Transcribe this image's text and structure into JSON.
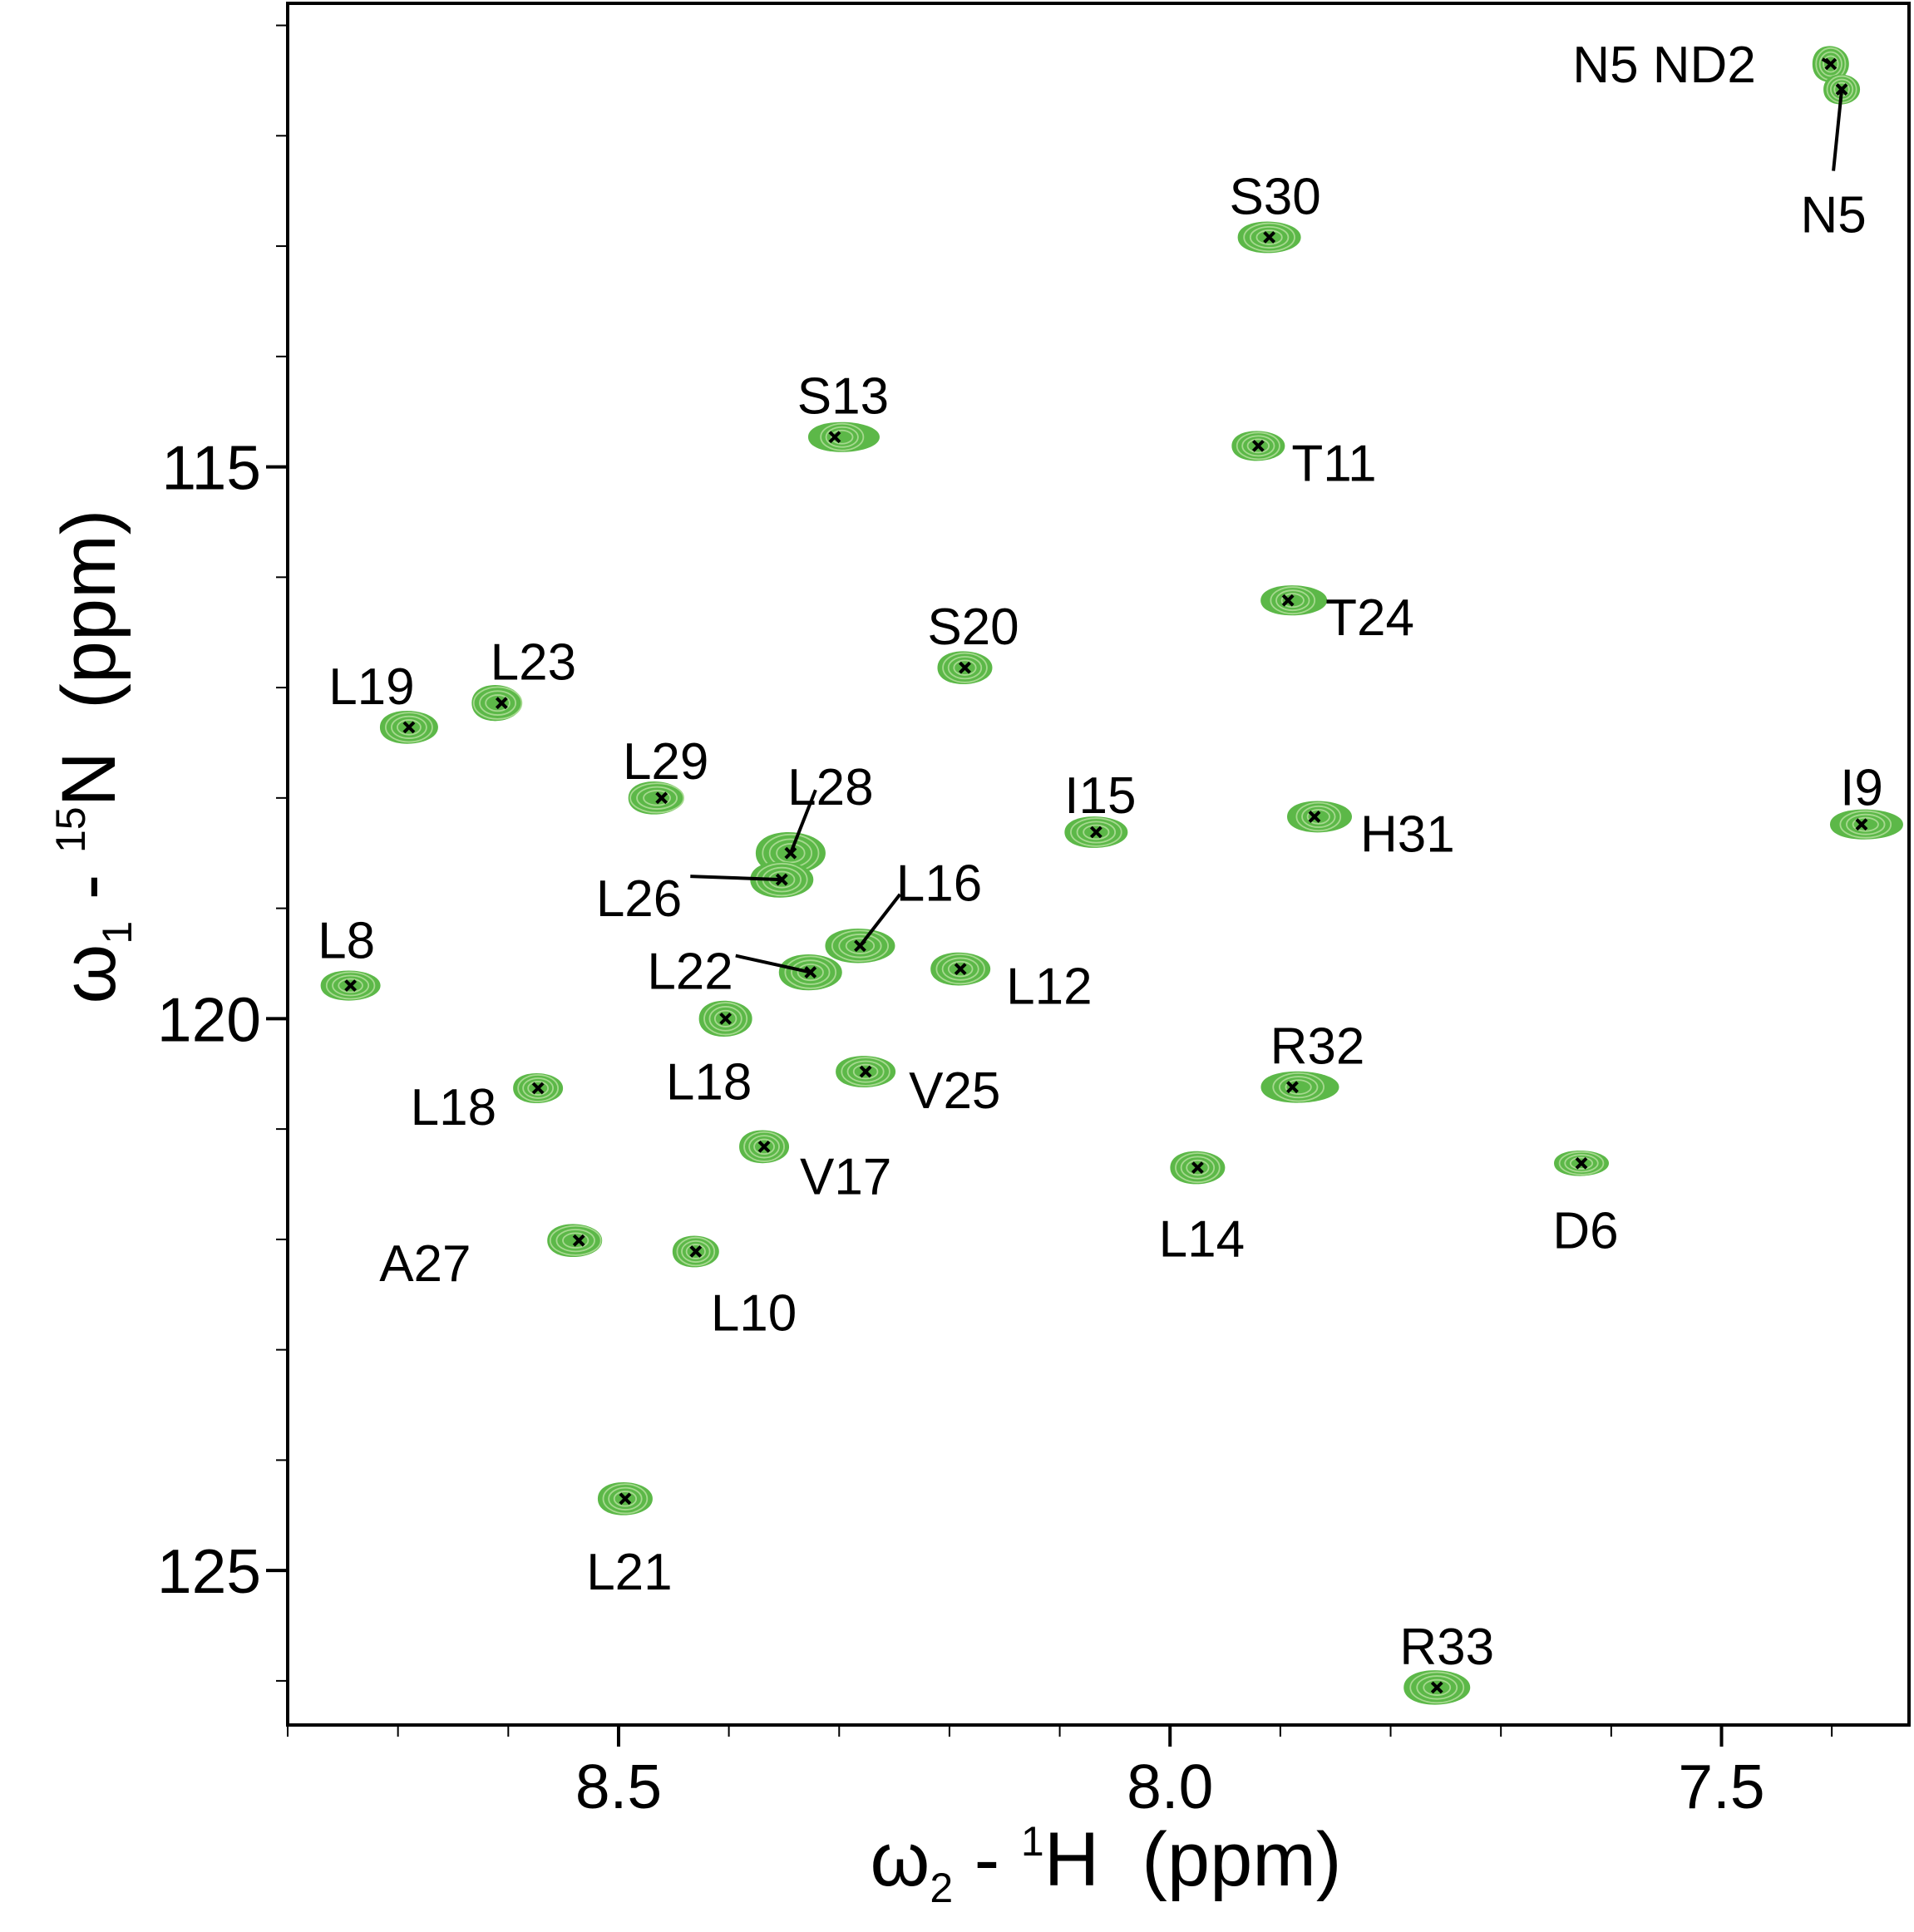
{
  "chart_data": {
    "type": "scatter",
    "title": "",
    "xlabel": {
      "prefix": "ω",
      "sub": "2",
      "middle": " - ",
      "sup": "1",
      "nucleus": "H",
      "unit": "  (ppm)"
    },
    "ylabel": {
      "prefix": "ω",
      "sub": "1",
      "middle": " - ",
      "sup": "15",
      "nucleus": "N",
      "unit": "  (ppm)"
    },
    "xlim": [
      8.8,
      7.33
    ],
    "ylim": [
      110.8,
      126.4
    ],
    "x_ticks": [
      8.5,
      8.0,
      7.5
    ],
    "x_tick_labels": [
      "8.5",
      "8.0",
      "7.5"
    ],
    "x_minor_step": 0.1,
    "y_ticks": [
      115,
      120,
      125
    ],
    "y_tick_labels": [
      "115",
      "120",
      "125"
    ],
    "y_minor_step": 1,
    "grid": false,
    "legend": "none",
    "contour_color": "#5cb848",
    "contour_line_color": "#a6d98f",
    "marker_color": "#000000",
    "peaks": [
      {
        "label": "N5 ND2",
        "x": 7.401,
        "y": 111.35
      },
      {
        "label": "N5",
        "x": 7.391,
        "y": 111.58
      },
      {
        "label": "S30",
        "x": 7.91,
        "y": 112.92
      },
      {
        "label": "S13",
        "x": 8.304,
        "y": 114.73
      },
      {
        "label": "T11",
        "x": 7.92,
        "y": 114.81
      },
      {
        "label": "T24",
        "x": 7.893,
        "y": 116.21
      },
      {
        "label": "S20",
        "x": 8.186,
        "y": 116.82
      },
      {
        "label": "L23",
        "x": 8.606,
        "y": 117.14
      },
      {
        "label": "L19",
        "x": 8.69,
        "y": 117.36
      },
      {
        "label": "L29",
        "x": 8.461,
        "y": 118.0
      },
      {
        "label": "H31",
        "x": 7.869,
        "y": 118.17
      },
      {
        "label": "I9",
        "x": 7.373,
        "y": 118.24
      },
      {
        "label": "I15",
        "x": 8.067,
        "y": 118.31
      },
      {
        "label": "L28",
        "x": 8.344,
        "y": 118.5
      },
      {
        "label": "L26",
        "x": 8.352,
        "y": 118.74
      },
      {
        "label": "L16",
        "x": 8.281,
        "y": 119.34
      },
      {
        "label": "L22",
        "x": 8.326,
        "y": 119.58
      },
      {
        "label": "L12",
        "x": 8.19,
        "y": 119.55
      },
      {
        "label": "L8",
        "x": 8.743,
        "y": 119.7
      },
      {
        "label": "L18",
        "x": 8.403,
        "y": 120.0
      },
      {
        "label": "V25",
        "x": 8.276,
        "y": 120.48
      },
      {
        "label": "L18",
        "x": 8.573,
        "y": 120.63
      },
      {
        "label": "R32",
        "x": 7.889,
        "y": 120.62
      },
      {
        "label": "V17",
        "x": 8.368,
        "y": 121.16
      },
      {
        "label": "D6",
        "x": 7.627,
        "y": 121.31
      },
      {
        "label": "L14",
        "x": 7.975,
        "y": 121.35
      },
      {
        "label": "A27",
        "x": 8.536,
        "y": 122.01
      },
      {
        "label": "L10",
        "x": 8.43,
        "y": 122.11
      },
      {
        "label": "L21",
        "x": 8.494,
        "y": 124.35
      },
      {
        "label": "R33",
        "x": 7.758,
        "y": 126.06
      }
    ]
  }
}
